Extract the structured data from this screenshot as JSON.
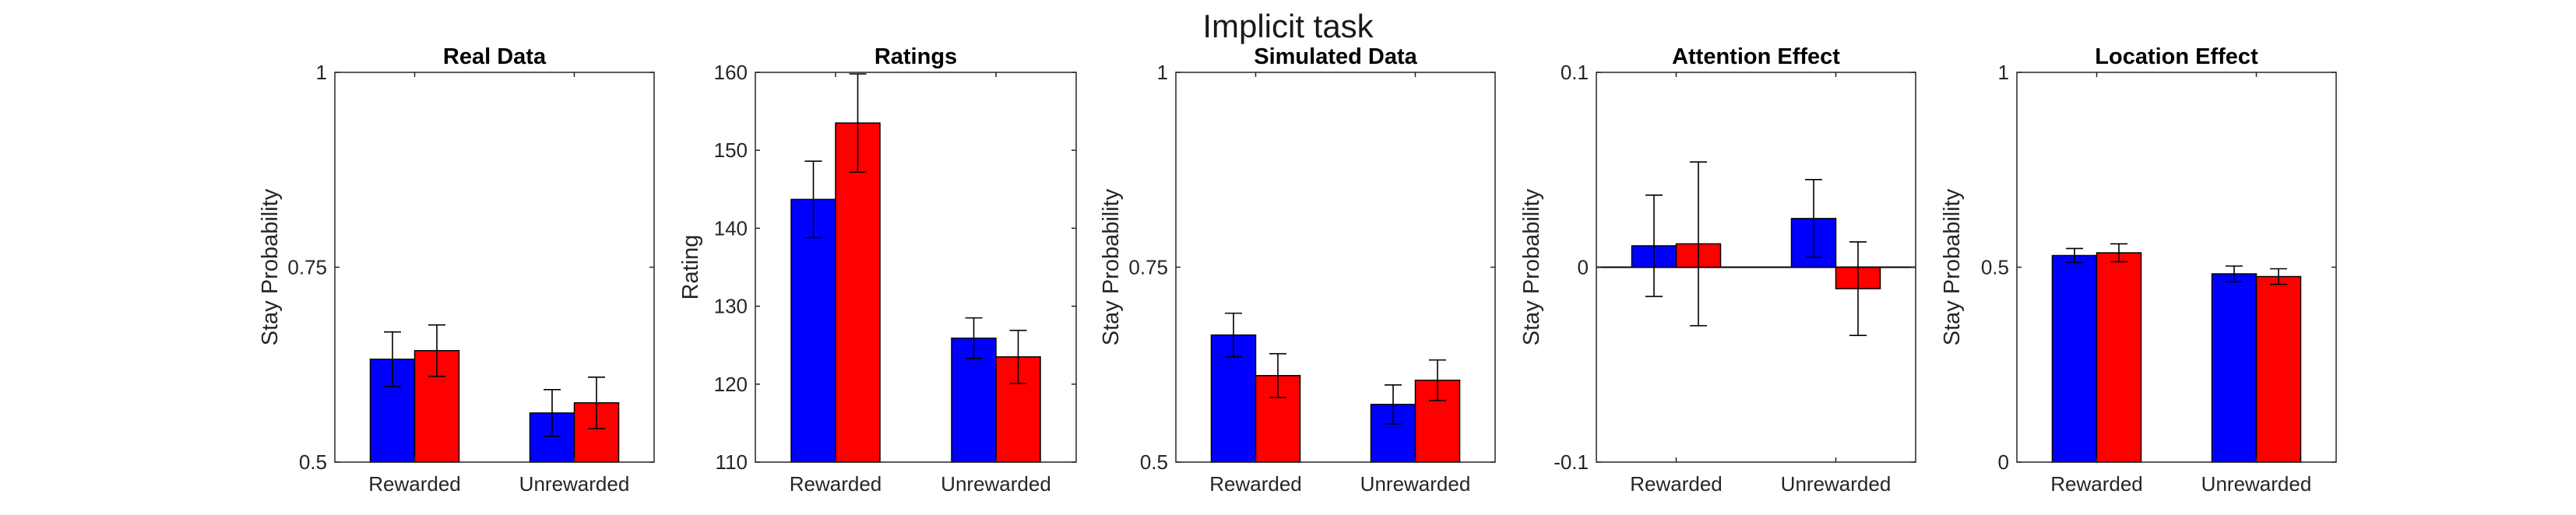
{
  "suptitle": "Implicit task",
  "colors": {
    "bar_a": "#0000FF",
    "bar_b": "#FF0000",
    "axis": "#262626",
    "bar_edge": "#000000"
  },
  "chart_data": [
    {
      "type": "bar",
      "title": "Real Data",
      "ylabel": "Stay Probability",
      "xlabel": "",
      "ylim": [
        0.5,
        1
      ],
      "yticks": [
        0.5,
        0.75,
        1
      ],
      "ytick_labels": [
        "0.5",
        "0.75",
        "1"
      ],
      "categories": [
        "Rewarded",
        "Unrewarded"
      ],
      "series": [
        {
          "color": "#0000FF",
          "values": [
            0.632,
            0.563
          ],
          "errors": [
            0.035,
            0.03
          ]
        },
        {
          "color": "#FF0000",
          "values": [
            0.643,
            0.576
          ],
          "errors": [
            0.033,
            0.033
          ]
        }
      ]
    },
    {
      "type": "bar",
      "title": "Ratings",
      "ylabel": "Rating",
      "xlabel": "",
      "ylim": [
        110,
        160
      ],
      "yticks": [
        110,
        120,
        130,
        140,
        150,
        160
      ],
      "ytick_labels": [
        "110",
        "120",
        "130",
        "140",
        "150",
        "160"
      ],
      "categories": [
        "Rewarded",
        "Unrewarded"
      ],
      "series": [
        {
          "color": "#0000FF",
          "values": [
            143.7,
            125.9
          ],
          "errors": [
            4.9,
            2.6
          ]
        },
        {
          "color": "#FF0000",
          "values": [
            153.5,
            123.5
          ],
          "errors": [
            6.3,
            3.4
          ]
        }
      ]
    },
    {
      "type": "bar",
      "title": "Simulated Data",
      "ylabel": "Stay Probability",
      "xlabel": "",
      "ylim": [
        0.5,
        1
      ],
      "yticks": [
        0.5,
        0.75,
        1
      ],
      "ytick_labels": [
        "0.5",
        "0.75",
        "1"
      ],
      "categories": [
        "Rewarded",
        "Unrewarded"
      ],
      "series": [
        {
          "color": "#0000FF",
          "values": [
            0.663,
            0.574
          ],
          "errors": [
            0.028,
            0.025
          ]
        },
        {
          "color": "#FF0000",
          "values": [
            0.611,
            0.605
          ],
          "errors": [
            0.028,
            0.026
          ]
        }
      ]
    },
    {
      "type": "bar",
      "title": "Attention Effect",
      "ylabel": "Stay Probability",
      "xlabel": "",
      "ylim": [
        -0.1,
        0.1
      ],
      "yticks": [
        -0.1,
        0,
        0.1
      ],
      "ytick_labels": [
        "-0.1",
        "0",
        "0.1"
      ],
      "zero_line": true,
      "categories": [
        "Rewarded",
        "Unrewarded"
      ],
      "series": [
        {
          "color": "#0000FF",
          "values": [
            0.011,
            0.025
          ],
          "errors": [
            0.026,
            0.02
          ]
        },
        {
          "color": "#FF0000",
          "values": [
            0.012,
            -0.011
          ],
          "errors": [
            0.042,
            0.024
          ]
        }
      ]
    },
    {
      "type": "bar",
      "title": "Location Effect",
      "ylabel": "Stay Probability",
      "xlabel": "",
      "ylim": [
        0,
        1
      ],
      "yticks": [
        0,
        0.5,
        1
      ],
      "ytick_labels": [
        "0",
        "0.5",
        "1"
      ],
      "categories": [
        "Rewarded",
        "Unrewarded"
      ],
      "series": [
        {
          "color": "#0000FF",
          "values": [
            0.53,
            0.483
          ],
          "errors": [
            0.018,
            0.02
          ]
        },
        {
          "color": "#FF0000",
          "values": [
            0.537,
            0.476
          ],
          "errors": [
            0.023,
            0.02
          ]
        }
      ]
    }
  ]
}
